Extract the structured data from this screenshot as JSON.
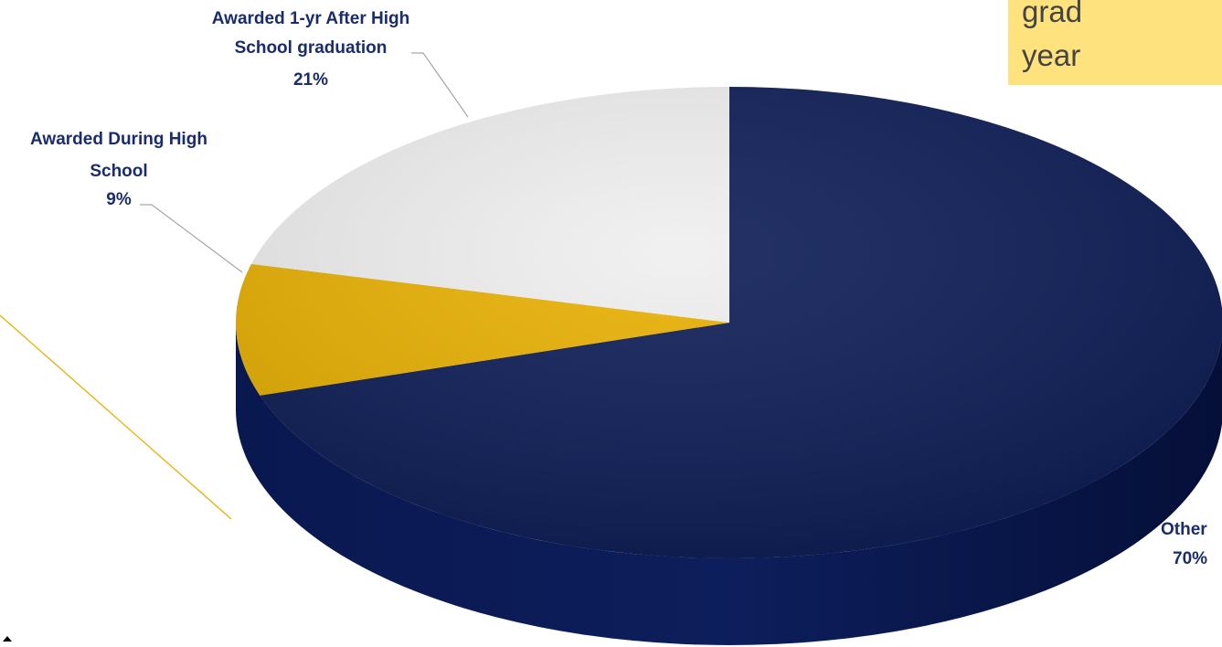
{
  "callout": {
    "lines": [
      "grad",
      "year"
    ]
  },
  "chart_data": {
    "type": "pie",
    "three_d": true,
    "title": "",
    "slices": [
      {
        "label_lines": [
          "Other"
        ],
        "value_label": "70%",
        "value": 70,
        "color": "#0b1b55"
      },
      {
        "label_lines": [
          "Awarded During High",
          "School"
        ],
        "value_label": "9%",
        "value": 9,
        "color": "#e8b000"
      },
      {
        "label_lines": [
          "Awarded 1-yr After High",
          "School graduation"
        ],
        "value_label": "21%",
        "value": 21,
        "color": "#efefef"
      }
    ],
    "legend": "none"
  },
  "colors": {
    "label_text": "#1a2c6b",
    "callout_fill": "#fde27d",
    "callout_line": "#e8b000",
    "leader_line": "#a6a6a6"
  }
}
